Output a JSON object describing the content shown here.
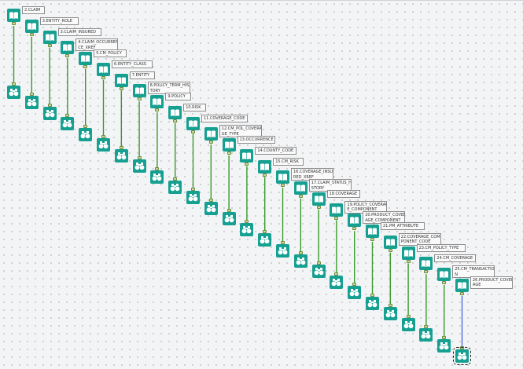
{
  "canvas": {
    "wire_color": "#3a9a2c",
    "selected_wire_color": "#3a55e0",
    "tool_color": "#16a091"
  },
  "input_icon": "book-icon",
  "browse_icon": "binoculars-icon",
  "inputs": [
    {
      "label": "2.CLAIM"
    },
    {
      "label": "3.ENTITY_ROLE"
    },
    {
      "label": "3.CLAIM_INSURED"
    },
    {
      "label": "4.CLAIM_OCCURREN\nCE_XREF"
    },
    {
      "label": "5.CM_POLICY"
    },
    {
      "label": "6.ENTITY_CLASS"
    },
    {
      "label": "7.ENTITY"
    },
    {
      "label": "8.POLICY_TERM_HIS\nTORY"
    },
    {
      "label": "9.POLICY"
    },
    {
      "label": "10.RISK"
    },
    {
      "label": "11.COVERAGE_CODE"
    },
    {
      "label": "12.CM_POL_COVERA\nGE_TYPE"
    },
    {
      "label": "13.OCCURRENCE"
    },
    {
      "label": "14.COUNTY_CODE"
    },
    {
      "label": "15.CM_RISK"
    },
    {
      "label": "16.COVERAGE_INSU\nRED_XREF"
    },
    {
      "label": "17.CLAIM_STATUS_HI\nSTORY"
    },
    {
      "label": "18.COVERAGE"
    },
    {
      "label": "19.POLICY_COVERAG\nE_COMPONENT"
    },
    {
      "label": "20.PRODUCT_COVER\nAGE_COMPONENT"
    },
    {
      "label": "21.PM_ATTRIBUTE"
    },
    {
      "label": "22.COVERAGE_COM\nPONENT_CODE"
    },
    {
      "label": "23.CM_POLICY_TYPE"
    },
    {
      "label": "24.CM_COVERAGE"
    },
    {
      "label": "25.CM_TRANSACTIO\nN"
    },
    {
      "label": "26.PRODUCT_COVER\nAGE"
    }
  ]
}
